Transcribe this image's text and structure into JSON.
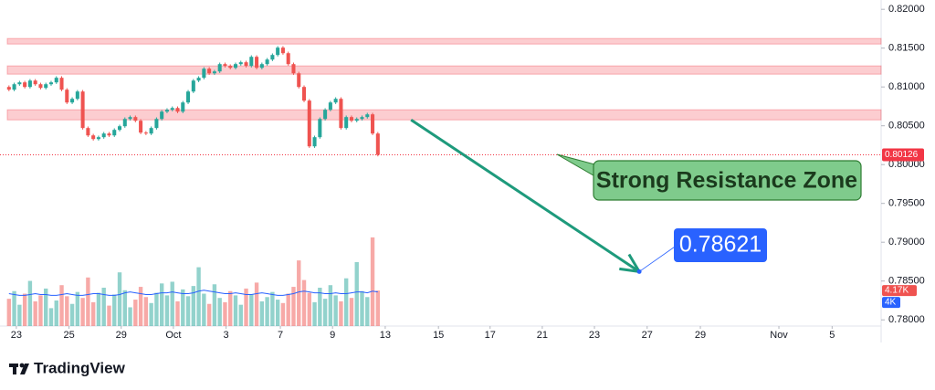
{
  "chart_data": {
    "type": "candlestick",
    "open": [
      0.81,
      0.80965,
      0.81035,
      0.81059,
      0.81,
      0.81082,
      0.81035,
      0.80988,
      0.81035,
      0.81059,
      0.81118,
      0.80965,
      0.808,
      0.80847,
      0.80941,
      0.80471,
      0.80376,
      0.80329,
      0.80353,
      0.804,
      0.80376,
      0.80447,
      0.80494,
      0.80588,
      0.80612,
      0.80565,
      0.80412,
      0.804,
      0.80471,
      0.80588,
      0.80682,
      0.80706,
      0.80729,
      0.80682,
      0.808,
      0.80941,
      0.81082,
      0.81118,
      0.81235,
      0.81176,
      0.812,
      0.81294,
      0.81271,
      0.81247,
      0.81294,
      0.81318,
      0.81271,
      0.81388,
      0.81247,
      0.81294,
      0.81353,
      0.81412,
      0.81506,
      0.81435,
      0.81294,
      0.81176,
      0.81,
      0.80824,
      0.80235,
      0.80353,
      0.80588,
      0.80706,
      0.808,
      0.80847,
      0.80471,
      0.80612,
      0.80565,
      0.80588,
      0.80612,
      0.80647,
      0.804
    ],
    "high": [
      0.8102,
      0.81055,
      0.81079,
      0.81079,
      0.81102,
      0.81102,
      0.81055,
      0.81055,
      0.81079,
      0.81138,
      0.81138,
      0.80985,
      0.80867,
      0.80961,
      0.80961,
      0.80491,
      0.80396,
      0.80373,
      0.8042,
      0.8042,
      0.80467,
      0.80514,
      0.80608,
      0.80632,
      0.80632,
      0.80585,
      0.80432,
      0.80491,
      0.80608,
      0.80702,
      0.80726,
      0.80749,
      0.80749,
      0.8082,
      0.80961,
      0.81102,
      0.81138,
      0.81255,
      0.81255,
      0.8122,
      0.81314,
      0.81314,
      0.81291,
      0.81314,
      0.81338,
      0.81338,
      0.81408,
      0.81408,
      0.81314,
      0.81373,
      0.81432,
      0.81526,
      0.81526,
      0.81455,
      0.81314,
      0.81196,
      0.8102,
      0.80844,
      0.80373,
      0.80608,
      0.80726,
      0.8082,
      0.80867,
      0.80867,
      0.80632,
      0.80632,
      0.80608,
      0.80632,
      0.80667,
      0.80667,
      0.8042
    ],
    "low": [
      0.80945,
      0.80945,
      0.81015,
      0.8098,
      0.8098,
      0.81015,
      0.80968,
      0.80968,
      0.81015,
      0.81039,
      0.80945,
      0.8078,
      0.8078,
      0.80827,
      0.80451,
      0.80356,
      0.80309,
      0.80309,
      0.80333,
      0.80356,
      0.80356,
      0.80427,
      0.80474,
      0.80568,
      0.80545,
      0.80392,
      0.8038,
      0.8038,
      0.80451,
      0.80568,
      0.80662,
      0.80686,
      0.80662,
      0.80662,
      0.8078,
      0.80921,
      0.81062,
      0.81098,
      0.81156,
      0.81156,
      0.8118,
      0.81251,
      0.81227,
      0.81227,
      0.81274,
      0.81251,
      0.81251,
      0.81227,
      0.81227,
      0.81274,
      0.81333,
      0.81392,
      0.81415,
      0.81274,
      0.81156,
      0.8098,
      0.80804,
      0.80215,
      0.80215,
      0.80333,
      0.80568,
      0.80686,
      0.8078,
      0.80451,
      0.80451,
      0.80545,
      0.80545,
      0.80568,
      0.80592,
      0.8038,
      0.80106
    ],
    "close": [
      0.80965,
      0.81035,
      0.81059,
      0.81,
      0.81082,
      0.81035,
      0.80988,
      0.81035,
      0.81059,
      0.81118,
      0.80965,
      0.808,
      0.80847,
      0.80941,
      0.80471,
      0.80376,
      0.80329,
      0.80353,
      0.804,
      0.80376,
      0.80447,
      0.80494,
      0.80588,
      0.80612,
      0.80565,
      0.80412,
      0.804,
      0.80471,
      0.80588,
      0.80682,
      0.80706,
      0.80729,
      0.80682,
      0.808,
      0.80941,
      0.81082,
      0.81118,
      0.81235,
      0.81176,
      0.812,
      0.81294,
      0.81271,
      0.81247,
      0.81294,
      0.81318,
      0.81271,
      0.81388,
      0.81247,
      0.81294,
      0.81353,
      0.81412,
      0.81506,
      0.81435,
      0.81294,
      0.81176,
      0.81,
      0.80824,
      0.80235,
      0.80353,
      0.80588,
      0.80706,
      0.808,
      0.80847,
      0.80471,
      0.80612,
      0.80565,
      0.80588,
      0.80612,
      0.80647,
      0.804,
      0.80126
    ],
    "up_color": "#26a69a",
    "down_color": "#ef5350",
    "xlim": [
      -1.7,
      165.5
    ],
    "xticks": [
      {
        "value": 1.4,
        "label": "23"
      },
      {
        "value": 11.4,
        "label": "25"
      },
      {
        "value": 21.3,
        "label": "29"
      },
      {
        "value": 31.2,
        "label": "Oct"
      },
      {
        "value": 41.2,
        "label": "3"
      },
      {
        "value": 51.5,
        "label": "7"
      },
      {
        "value": 61.4,
        "label": "9"
      },
      {
        "value": 71.4,
        "label": "13"
      },
      {
        "value": 81.5,
        "label": "15"
      },
      {
        "value": 91.3,
        "label": "17"
      },
      {
        "value": 101.2,
        "label": "21"
      },
      {
        "value": 111.1,
        "label": "23"
      },
      {
        "value": 121.1,
        "label": "27"
      },
      {
        "value": 131.2,
        "label": "29"
      },
      {
        "value": 146.1,
        "label": "Nov"
      },
      {
        "value": 156.2,
        "label": "5"
      }
    ],
    "ylim": [
      0.7792,
      0.8212
    ],
    "yticks": [
      {
        "value": 0.82,
        "label": "0.82000"
      },
      {
        "value": 0.815,
        "label": "0.81500"
      },
      {
        "value": 0.81,
        "label": "0.81000"
      },
      {
        "value": 0.805,
        "label": "0.80500"
      },
      {
        "value": 0.8,
        "label": "0.80000"
      },
      {
        "value": 0.795,
        "label": "0.79500"
      },
      {
        "value": 0.79,
        "label": "0.79000"
      },
      {
        "value": 0.785,
        "label": "0.78500"
      },
      {
        "value": 0.78,
        "label": "0.78000"
      }
    ],
    "current_price_color": "#f23645",
    "zones": [
      [
        0.81553,
        0.81624
      ],
      [
        0.81165,
        0.81271
      ],
      [
        0.80576,
        0.80706
      ]
    ],
    "zone_color": "#f23645",
    "volume": {
      "values": [
        3.2,
        4.1,
        2.5,
        3.8,
        5.3,
        2.9,
        3.6,
        4.4,
        2.1,
        3.0,
        4.8,
        3.5,
        2.6,
        4.0,
        3.3,
        5.7,
        2.8,
        3.9,
        4.5,
        2.4,
        3.7,
        6.3,
        4.2,
        2.2,
        3.1,
        4.6,
        3.4,
        2.7,
        3.9,
        5.0,
        3.6,
        5.2,
        2.9,
        4.3,
        3.5,
        4.7,
        6.9,
        3.8,
        2.6,
        4.9,
        3.3,
        2.8,
        4.1,
        3.6,
        2.5,
        4.4,
        3.7,
        5.1,
        2.9,
        3.4,
        4.0,
        3.1,
        2.7,
        3.8,
        4.6,
        7.7,
        5.4,
        3.9,
        2.8,
        4.5,
        3.2,
        4.8,
        3.6,
        2.9,
        5.6,
        3.3,
        7.5,
        4.1,
        3.4,
        10.4,
        4.17
      ],
      "last_label": "4.17K",
      "lim": [
        0,
        12
      ]
    },
    "volume_ma": {
      "values": [
        3.8,
        3.7,
        3.6,
        3.6,
        3.7,
        3.8,
        3.7,
        3.7,
        3.6,
        3.6,
        3.7,
        3.8,
        3.7,
        3.6,
        3.6,
        3.7,
        3.8,
        3.8,
        3.7,
        3.6,
        3.6,
        3.7,
        3.9,
        4.0,
        3.9,
        3.8,
        3.7,
        3.7,
        3.8,
        3.9,
        3.9,
        4.0,
        3.9,
        3.8,
        3.8,
        3.9,
        4.1,
        4.2,
        4.1,
        4.0,
        3.9,
        3.8,
        3.8,
        3.9,
        3.8,
        3.7,
        3.7,
        3.8,
        3.9,
        3.8,
        3.7,
        3.6,
        3.6,
        3.7,
        3.8,
        4.0,
        4.1,
        4.0,
        3.9,
        3.9,
        3.8,
        3.8,
        3.9,
        3.8,
        3.8,
        3.9,
        4.0,
        4.0,
        3.9,
        4.1,
        4
      ],
      "last_label": "4K",
      "color": "#2962ff"
    },
    "projection": {
      "from": [
        76.3,
        0.80576
      ],
      "to": [
        119.6,
        0.78621
      ],
      "color": "#1e9a7c"
    },
    "callout": "Strong Resistance Zone",
    "brand": "TradingView"
  }
}
